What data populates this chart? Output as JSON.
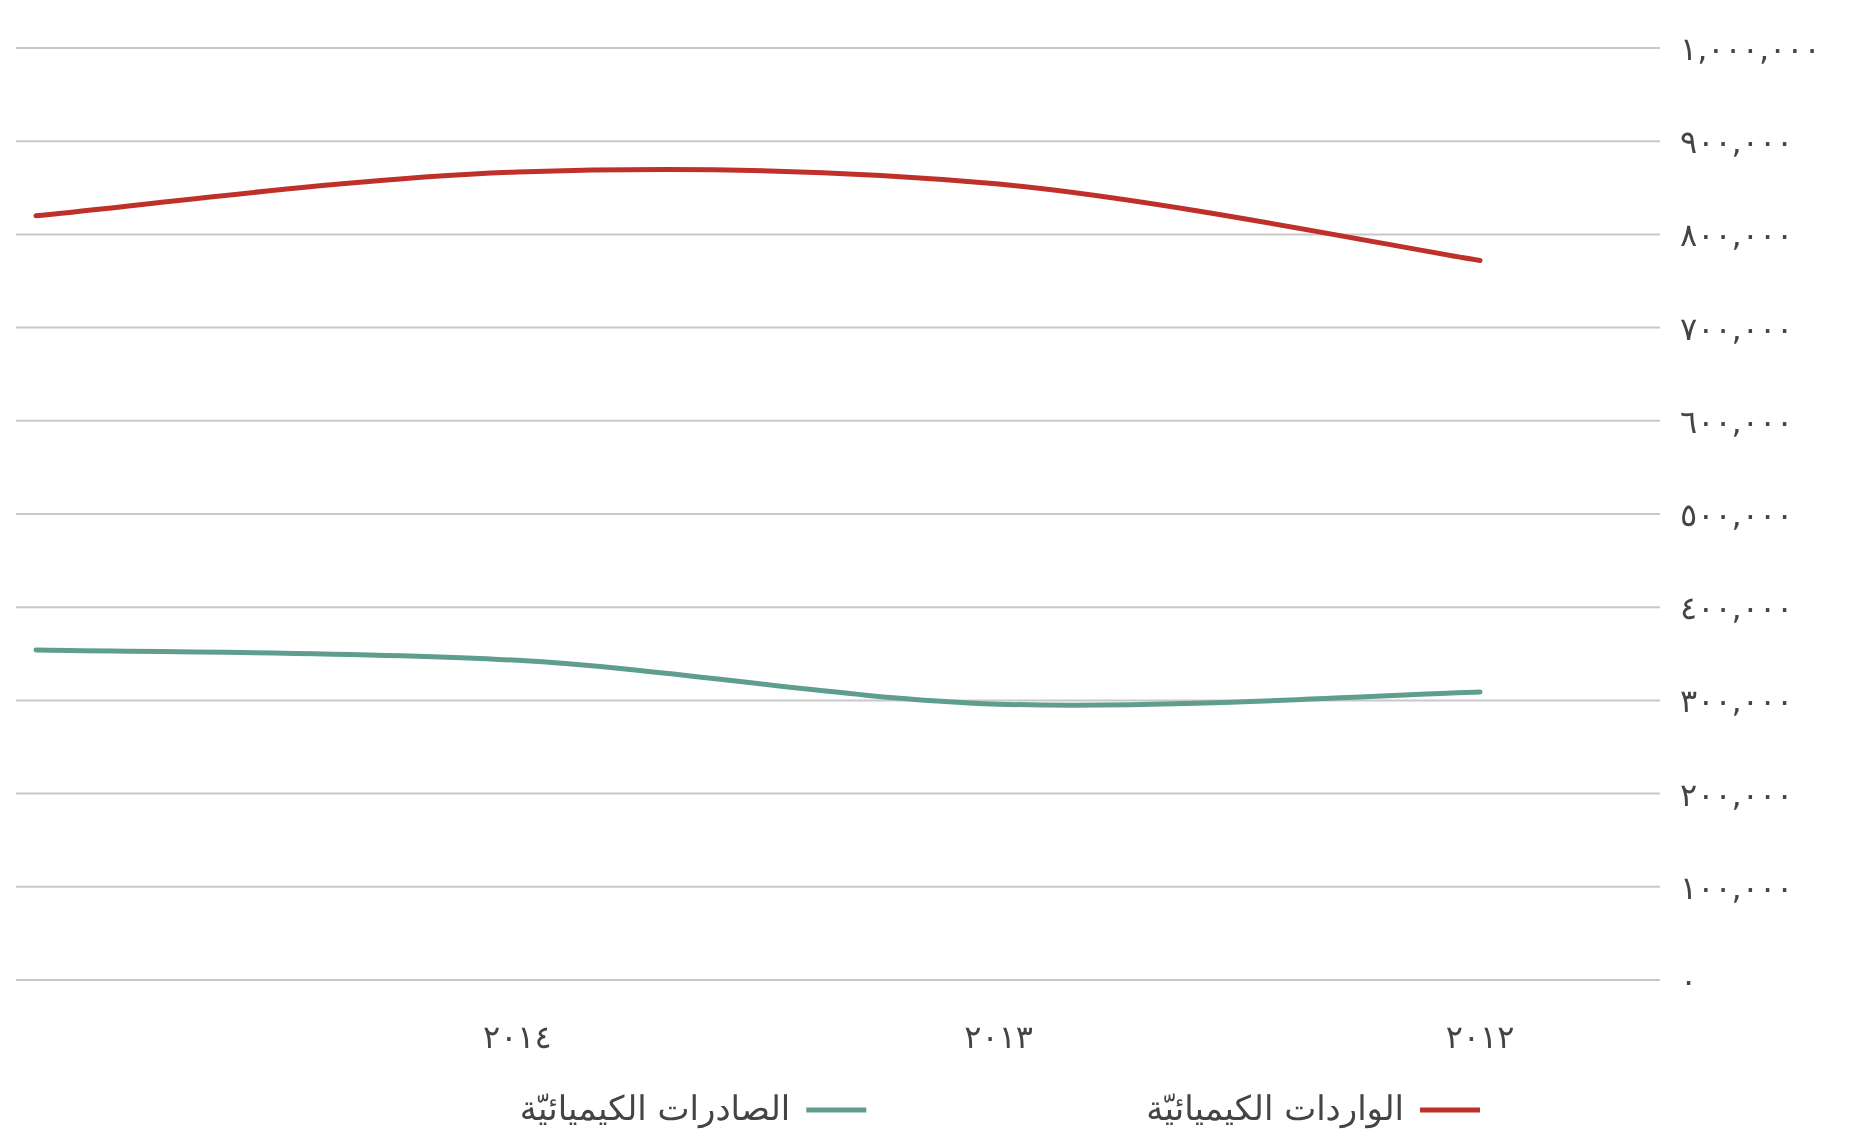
{
  "chart_data": {
    "type": "line",
    "categories": [
      null,
      "٢٠١٤",
      "٢٠١٣",
      "٢٠١٢"
    ],
    "series": [
      {
        "name": "الواردات الكيميائيّة",
        "color": "#c0302a",
        "values": [
          820000,
          867000,
          854000,
          772000
        ]
      },
      {
        "name": "الصادرات الكيميائيّة",
        "color": "#5f9e8f",
        "values": [
          354000,
          343000,
          296000,
          309000
        ]
      }
    ],
    "ylim": [
      0,
      1000000
    ],
    "yticks": [
      {
        "value": 0,
        "label": "٠"
      },
      {
        "value": 100000,
        "label": "١٠٠,٠٠٠"
      },
      {
        "value": 200000,
        "label": "٢٠٠,٠٠٠"
      },
      {
        "value": 300000,
        "label": "٣٠٠,٠٠٠"
      },
      {
        "value": 400000,
        "label": "٤٠٠,٠٠٠"
      },
      {
        "value": 500000,
        "label": "٥٠٠,٠٠٠"
      },
      {
        "value": 600000,
        "label": "٦٠٠,٠٠٠"
      },
      {
        "value": 700000,
        "label": "٧٠٠,٠٠٠"
      },
      {
        "value": 800000,
        "label": "٨٠٠,٠٠٠"
      },
      {
        "value": 900000,
        "label": "٩٠٠,٠٠٠"
      },
      {
        "value": 1000000,
        "label": "١,٠٠٠,٠٠٠"
      }
    ],
    "grid": "y",
    "legend": "bottom",
    "marker": "none",
    "line_style": "solid"
  }
}
